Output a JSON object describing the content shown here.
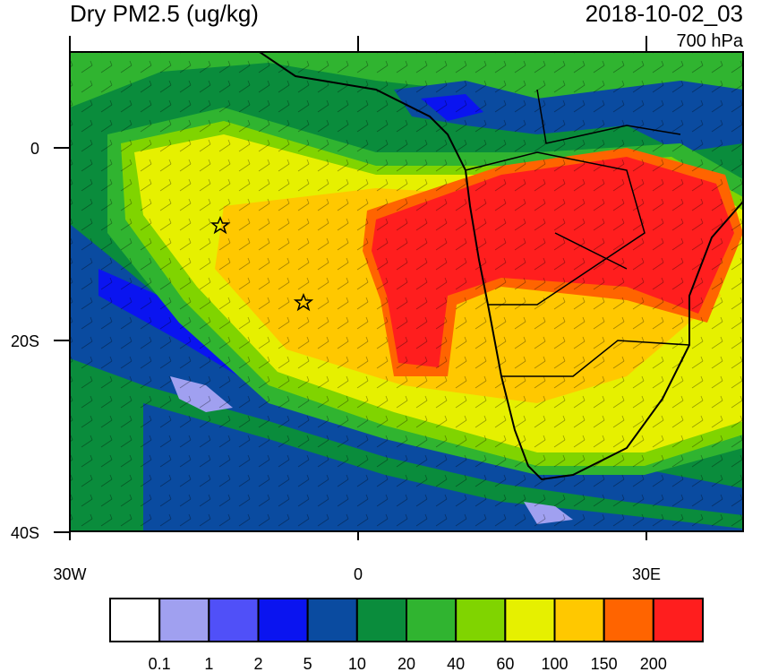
{
  "header": {
    "title": "Dry PM2.5 (ug/kg)",
    "timestamp": "2018-10-02_03",
    "level": "700 hPa"
  },
  "map": {
    "x_labels": [
      "30W",
      "0",
      "30E"
    ],
    "y_labels": [
      "0",
      "20S",
      "40S"
    ]
  },
  "colorbar": {
    "colors": [
      "#ffffff",
      "#a0a0f0",
      "#5050f8",
      "#0a14f0",
      "#0a4ba0",
      "#0a8c3c",
      "#30b430",
      "#80d400",
      "#e6f000",
      "#ffc800",
      "#ff6400",
      "#ff1e1e"
    ],
    "labels": [
      "0.1",
      "1",
      "2",
      "5",
      "10",
      "20",
      "40",
      "60",
      "100",
      "150",
      "200"
    ]
  }
}
